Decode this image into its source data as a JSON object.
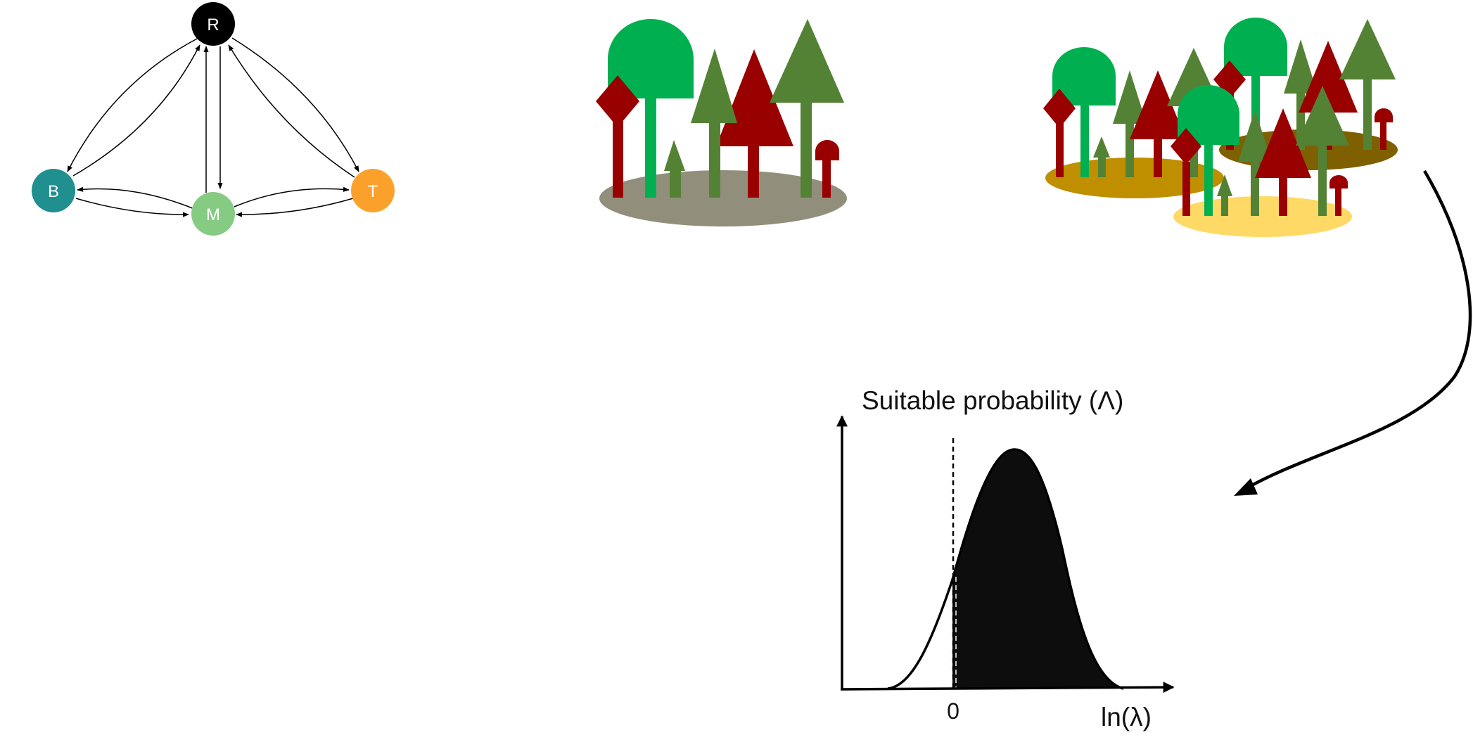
{
  "network": {
    "nodes": [
      {
        "id": "R",
        "label": "R",
        "color": "#000000"
      },
      {
        "id": "B",
        "label": "B",
        "color": "#1f8f8f"
      },
      {
        "id": "M",
        "label": "M",
        "color": "#86cb82"
      },
      {
        "id": "T",
        "label": "T",
        "color": "#fba12b"
      }
    ],
    "edges": [
      {
        "from": "R",
        "to": "B"
      },
      {
        "from": "B",
        "to": "R"
      },
      {
        "from": "R",
        "to": "M"
      },
      {
        "from": "M",
        "to": "R"
      },
      {
        "from": "R",
        "to": "T"
      },
      {
        "from": "T",
        "to": "R"
      },
      {
        "from": "B",
        "to": "M"
      },
      {
        "from": "M",
        "to": "B"
      },
      {
        "from": "M",
        "to": "T"
      },
      {
        "from": "T",
        "to": "M"
      }
    ]
  },
  "colors": {
    "dark_red": "#990000",
    "bright_green": "#00b050",
    "olive_green": "#548235",
    "gray_patch": "#918f7c",
    "gold_patch": "#bf8f00",
    "brown_patch": "#7f6000",
    "light_yellow_patch": "#ffd966",
    "curve_fill": "#0d0d0d"
  },
  "plot": {
    "title": "Suitable probability (Λ)",
    "x_label": "ln(λ)",
    "x_tick": "0"
  }
}
